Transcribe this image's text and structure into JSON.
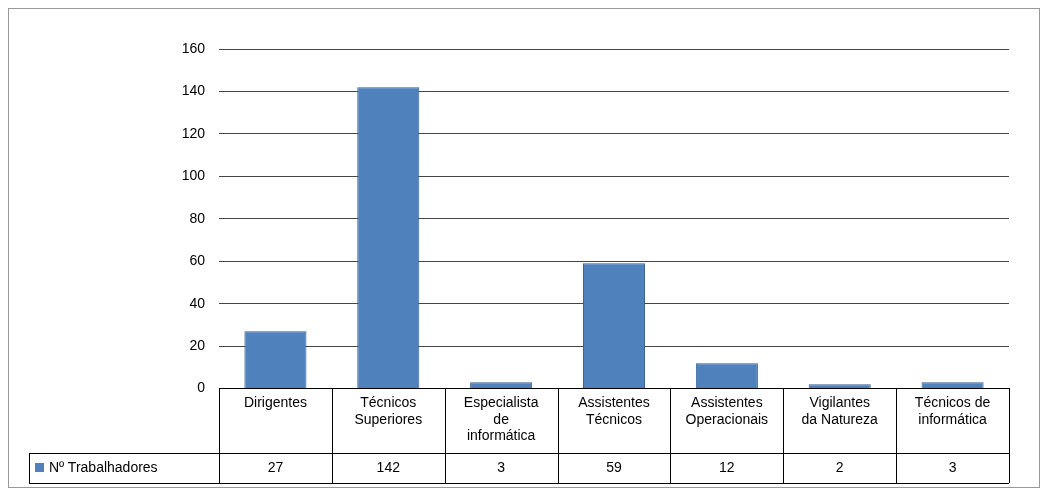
{
  "chart_data": {
    "type": "bar",
    "categories": [
      "Dirigentes",
      "Técnicos Superiores",
      "Especialista de informática",
      "Assistentes Técnicos",
      "Assistentes Operacionais",
      "Vigilantes da Natureza",
      "Técnicos de informática"
    ],
    "series": [
      {
        "name": "Nº Trabalhadores",
        "color": "#4f81bd",
        "values": [
          27,
          142,
          3,
          59,
          12,
          2,
          3
        ]
      }
    ],
    "ylim": [
      0,
      160
    ],
    "yticks": [
      0,
      20,
      40,
      60,
      80,
      100,
      120,
      140,
      160
    ],
    "grid": "y",
    "data_labels": true,
    "legend": "bottom"
  }
}
